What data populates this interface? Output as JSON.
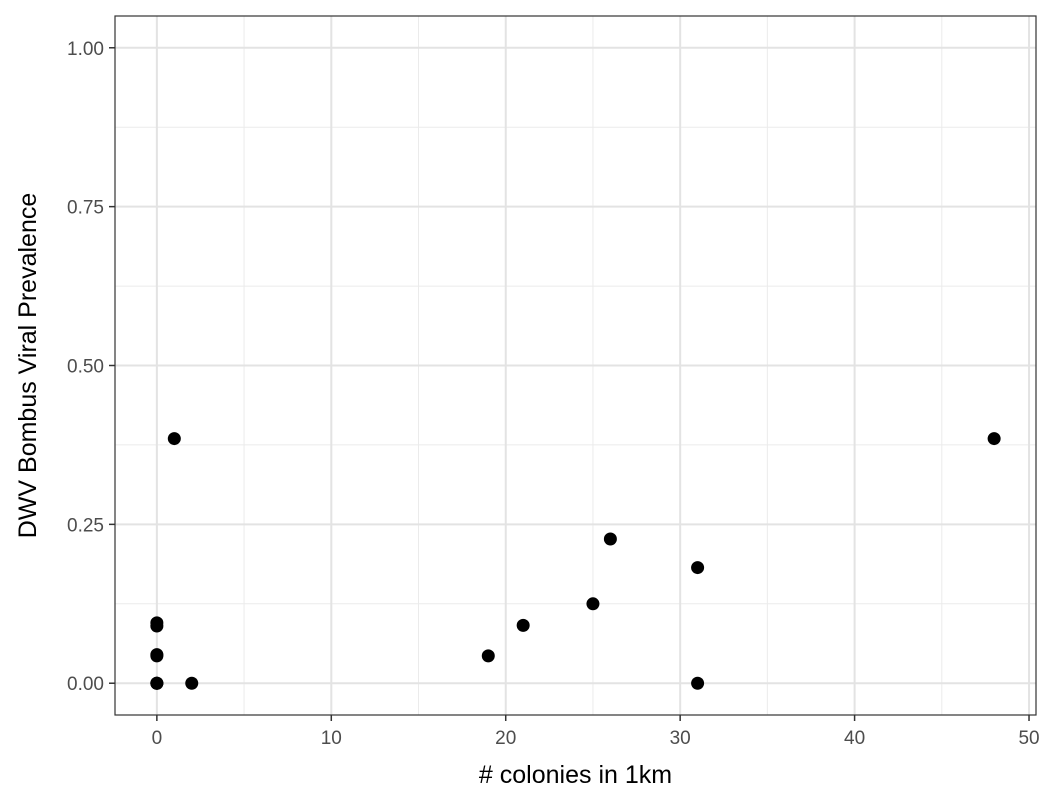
{
  "chart_data": {
    "type": "scatter",
    "title": "",
    "xlabel": "# colonies in 1km",
    "ylabel": "DWV Bombus Viral Prevalence",
    "xlim": [
      -2.4,
      50.4
    ],
    "ylim": [
      -0.05,
      1.05
    ],
    "x_ticks": [
      0,
      10,
      20,
      30,
      40,
      50
    ],
    "x_tick_labels": [
      "0",
      "10",
      "20",
      "30",
      "40",
      "50"
    ],
    "y_ticks": [
      0,
      0.25,
      0.5,
      0.75,
      1.0
    ],
    "y_tick_labels": [
      "0.00",
      "0.25",
      "0.50",
      "0.75",
      "1.00"
    ],
    "grid": true,
    "legend": "none",
    "point_color": "#000000",
    "points": [
      {
        "x": 0,
        "y": 0.0
      },
      {
        "x": 0,
        "y": 0.0
      },
      {
        "x": 0,
        "y": 0.0
      },
      {
        "x": 0,
        "y": 0.043
      },
      {
        "x": 0,
        "y": 0.045
      },
      {
        "x": 0,
        "y": 0.09
      },
      {
        "x": 0,
        "y": 0.095
      },
      {
        "x": 1,
        "y": 0.385
      },
      {
        "x": 2,
        "y": 0.0
      },
      {
        "x": 19,
        "y": 0.043
      },
      {
        "x": 21,
        "y": 0.091
      },
      {
        "x": 25,
        "y": 0.125
      },
      {
        "x": 26,
        "y": 0.227
      },
      {
        "x": 31,
        "y": 0.182
      },
      {
        "x": 31,
        "y": 0.0
      },
      {
        "x": 48,
        "y": 0.385
      }
    ]
  }
}
